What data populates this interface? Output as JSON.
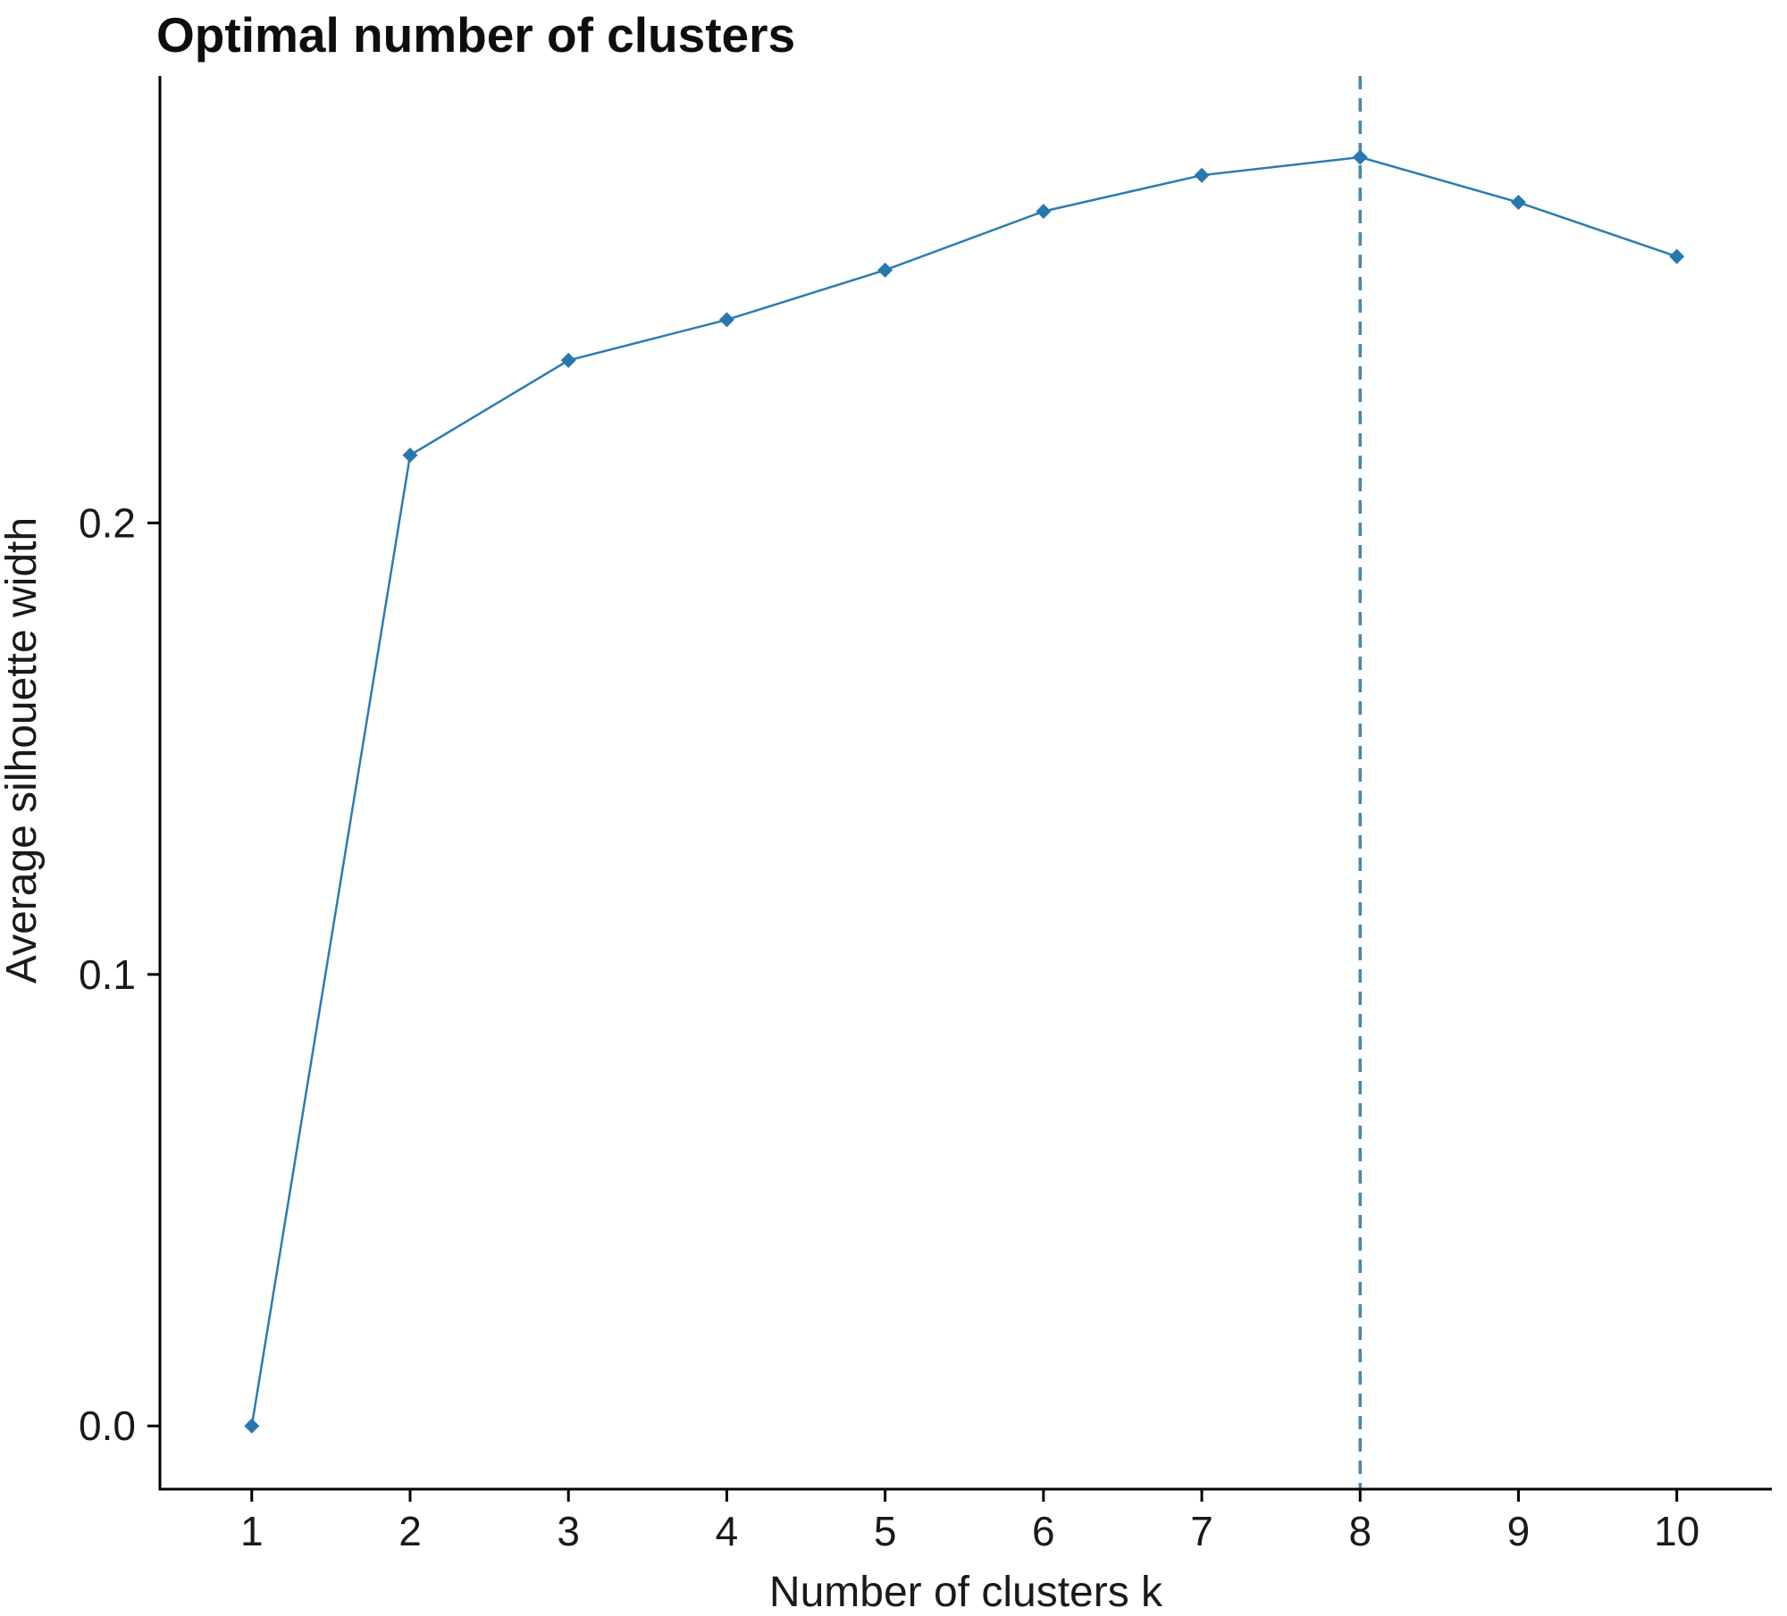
{
  "title": "Optimal number of clusters",
  "chart_data": {
    "type": "line",
    "title": "Optimal number of clusters",
    "xlabel": "Number of clusters k",
    "ylabel": "Average silhouette width",
    "x": [
      1,
      2,
      3,
      4,
      5,
      6,
      7,
      8,
      9,
      10
    ],
    "values": [
      0.0,
      0.215,
      0.236,
      0.245,
      0.256,
      0.269,
      0.277,
      0.281,
      0.271,
      0.259
    ],
    "series_name": "Average silhouette width",
    "xtick_labels": [
      "1",
      "2",
      "3",
      "4",
      "5",
      "6",
      "7",
      "8",
      "9",
      "10"
    ],
    "yticks": [
      {
        "value": 0.0,
        "label": "0.0"
      },
      {
        "value": 0.1,
        "label": "0.1"
      },
      {
        "value": 0.2,
        "label": "0.2"
      }
    ],
    "xlim": [
      0.42,
      10.6
    ],
    "ylim": [
      -0.014,
      0.299
    ],
    "grid": false,
    "legend": "none",
    "marker": "diamond",
    "annotations": [
      {
        "type": "vline",
        "x": 8,
        "style": "dashed",
        "meaning": "optimal number of clusters"
      }
    ],
    "optimal_k": 8,
    "colors": {
      "series": "#2d7bb2",
      "marker": "#2878b0",
      "vline": "#4886ad",
      "axis": "#000000",
      "text": "#1a1a1a"
    }
  }
}
